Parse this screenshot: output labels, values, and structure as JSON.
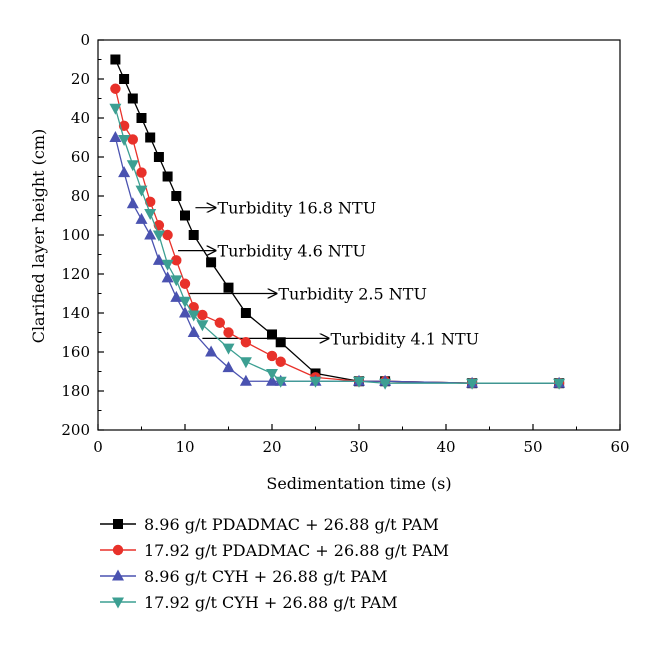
{
  "chart_data": {
    "type": "line",
    "title": "",
    "xlabel": "Sedimentation time (s)",
    "ylabel": "Clarified layer height (cm)",
    "xlim": [
      0,
      60
    ],
    "ylim": [
      0,
      200
    ],
    "y_inverted": true,
    "x_ticks": [
      "0",
      "10",
      "20",
      "30",
      "40",
      "50",
      "60"
    ],
    "y_ticks": [
      "0",
      "20",
      "40",
      "60",
      "80",
      "100",
      "120",
      "140",
      "160",
      "180",
      "200"
    ],
    "grid": false,
    "legend_position": "bottom",
    "series": [
      {
        "name": "8.96 g/t PDADMAC + 26.88 g/t PAM",
        "color": "#000000",
        "marker": "square",
        "x": [
          2,
          3,
          4,
          5,
          6,
          7,
          8,
          9,
          10,
          11,
          13,
          15,
          17,
          20,
          21,
          25,
          30,
          33,
          43,
          53
        ],
        "y": [
          10,
          20,
          30,
          40,
          50,
          60,
          70,
          80,
          90,
          100,
          114,
          127,
          140,
          151,
          155,
          171,
          175,
          175,
          176,
          176
        ]
      },
      {
        "name": "17.92 g/t PDADMAC + 26.88 g/t PAM",
        "color": "#e8312a",
        "marker": "circle",
        "x": [
          2,
          3,
          4,
          5,
          6,
          7,
          8,
          9,
          10,
          11,
          12,
          14,
          15,
          17,
          20,
          21,
          25,
          30,
          33,
          43,
          53
        ],
        "y": [
          25,
          44,
          51,
          68,
          83,
          95,
          100,
          113,
          125,
          137,
          141,
          145,
          150,
          155,
          162,
          165,
          173,
          175,
          175,
          176,
          176
        ]
      },
      {
        "name": "8.96 g/t CYH + 26.88 g/t PAM",
        "color": "#4a52b0",
        "marker": "triangle-up",
        "x": [
          2,
          3,
          4,
          5,
          6,
          7,
          8,
          9,
          10,
          11,
          13,
          15,
          17,
          20,
          21,
          25,
          30,
          33,
          43,
          53
        ],
        "y": [
          50,
          68,
          84,
          92,
          100,
          113,
          122,
          132,
          140,
          150,
          160,
          168,
          175,
          175,
          175,
          175,
          175,
          175,
          176,
          176
        ]
      },
      {
        "name": "17.92 g/t CYH + 26.88 g/t PAM",
        "color": "#3c9f92",
        "marker": "triangle-down",
        "x": [
          2,
          3,
          4,
          5,
          6,
          7,
          8,
          9,
          10,
          11,
          12,
          15,
          17,
          20,
          21,
          25,
          30,
          33,
          43,
          53
        ],
        "y": [
          35,
          51,
          64,
          77,
          89,
          100,
          115,
          123,
          134,
          141,
          146,
          158,
          165,
          171,
          175,
          175,
          175,
          176,
          176,
          176
        ]
      }
    ],
    "annotations": [
      {
        "text": "Turbidity 16.8 NTU",
        "from": [
          11.2,
          86
        ],
        "to": [
          13.5,
          86
        ]
      },
      {
        "text": "Turbidity 4.6 NTU",
        "from": [
          9.2,
          108
        ],
        "to": [
          13.5,
          108
        ]
      },
      {
        "text": "Turbidity 2.5 NTU",
        "from": [
          10.5,
          130
        ],
        "to": [
          20.5,
          130
        ]
      },
      {
        "text": "Turbidity 4.1 NTU",
        "from": [
          12,
          153
        ],
        "to": [
          26.5,
          153
        ]
      }
    ]
  }
}
